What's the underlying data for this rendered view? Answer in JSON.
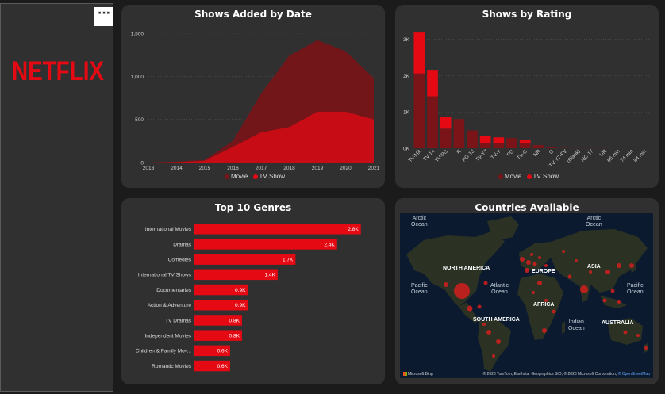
{
  "logo_text": "NETFLIX",
  "more_options": "···",
  "colors": {
    "accent": "#E50914",
    "movie": "#7a1418",
    "tv_show": "#E50914",
    "card": "#303030",
    "bg": "#1b1b1b"
  },
  "cards": {
    "shows_by_date": {
      "title": "Shows Added by Date"
    },
    "shows_by_rating": {
      "title": "Shows by Rating"
    },
    "top_genres": {
      "title": "Top 10 Genres"
    },
    "countries": {
      "title": "Countries Available"
    }
  },
  "legend": {
    "movie": "Movie",
    "tv_show": "TV Show"
  },
  "chart_data": [
    {
      "type": "area",
      "title": "Shows Added by Date",
      "x": [
        2013,
        2014,
        2015,
        2016,
        2017,
        2018,
        2019,
        2020,
        2021
      ],
      "x_ticks": [
        "2013",
        "2014",
        "2015",
        "2016",
        "2017",
        "2018",
        "2019",
        "2020",
        "2021"
      ],
      "y_ticks": [
        "0",
        "500",
        "1,000",
        "1,500"
      ],
      "ylim": [
        0,
        1500
      ],
      "grid": true,
      "legend_position": "bottom",
      "series": [
        {
          "name": "Movie",
          "values": [
            0,
            10,
            30,
            250,
            800,
            1240,
            1420,
            1290,
            980
          ]
        },
        {
          "name": "TV Show",
          "values": [
            0,
            5,
            20,
            180,
            350,
            410,
            590,
            590,
            500
          ]
        }
      ]
    },
    {
      "type": "bar",
      "title": "Shows by Rating",
      "categories": [
        "TV-MA",
        "TV-14",
        "TV-PG",
        "R",
        "PG-13",
        "TV-Y7",
        "TV-Y",
        "PG",
        "TV-G",
        "NR",
        "G",
        "TV-Y7-FV",
        "(Blank)",
        "NC-17",
        "UR",
        "66 min",
        "74 min",
        "84 min"
      ],
      "y_ticks": [
        "0K",
        "1K",
        "2K",
        "3K"
      ],
      "ylim": [
        0,
        3300
      ],
      "grid": true,
      "legend_position": "bottom",
      "series": [
        {
          "name": "Movie",
          "values": [
            2060,
            1430,
            540,
            800,
            490,
            140,
            130,
            280,
            130,
            75,
            40,
            5,
            3,
            3,
            3,
            1,
            1,
            1
          ]
        },
        {
          "name": "TV Show",
          "values": [
            1150,
            730,
            320,
            2,
            0,
            200,
            170,
            0,
            90,
            5,
            0,
            1,
            1,
            0,
            0,
            0,
            0,
            0
          ]
        }
      ]
    },
    {
      "type": "bar",
      "title": "Top 10 Genres",
      "orientation": "horizontal",
      "categories": [
        "International Movies",
        "Dramas",
        "Comedies",
        "International TV Shows",
        "Documentaries",
        "Action & Adventure",
        "TV Dramas",
        "Independent Movies",
        "Children & Family Mov...",
        "Romantic Movies"
      ],
      "values": [
        2.8,
        2.4,
        1.7,
        1.4,
        0.9,
        0.9,
        0.8,
        0.8,
        0.6,
        0.6
      ],
      "data_labels": [
        "2.8K",
        "2.4K",
        "1.7K",
        "1.4K",
        "0.9K",
        "0.9K",
        "0.8K",
        "0.8K",
        "0.6K",
        "0.6K"
      ],
      "unit": "K"
    }
  ],
  "map": {
    "continents": [
      "NORTH AMERICA",
      "EUROPE",
      "ASIA",
      "AFRICA",
      "SOUTH AMERICA",
      "AUSTRALIA"
    ],
    "oceans": {
      "arctic_left": [
        "Arctic",
        "Ocean"
      ],
      "arctic_right": [
        "Arctic",
        "Ocean"
      ],
      "pacific_left": [
        "Pacific",
        "Ocean"
      ],
      "atlantic": [
        "Atlantic",
        "Ocean"
      ],
      "pacific_right": [
        "Pacific",
        "Ocean"
      ],
      "indian": [
        "Indian",
        "Ocean"
      ]
    },
    "credit": "© 2023 TomTom, Earthstar Geographics SIO, © 2023 Microsoft Corporation, ",
    "credit_link": "© OpenStreetMap",
    "provider": "Microsoft Bing"
  }
}
